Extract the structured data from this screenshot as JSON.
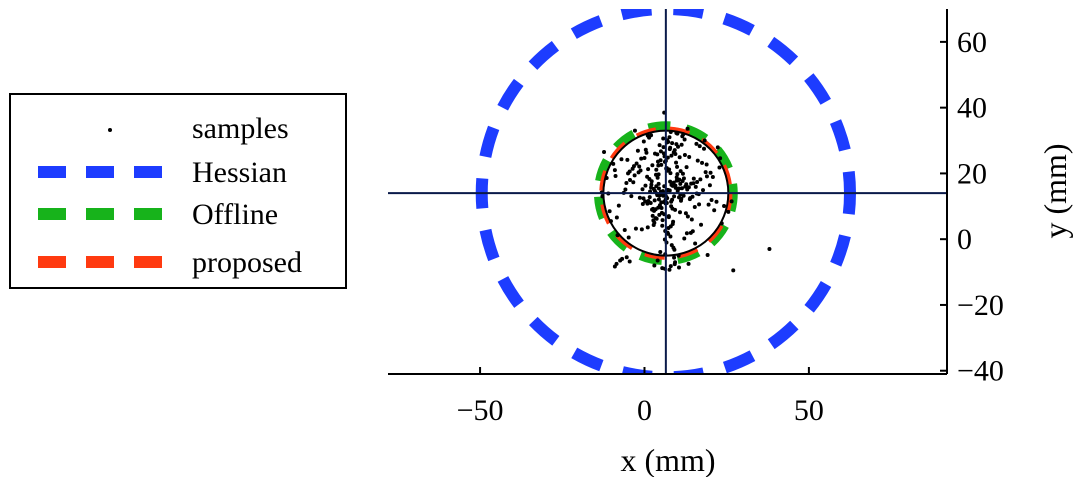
{
  "chart_data": {
    "type": "scatter",
    "title": "",
    "xlabel": "x (mm)",
    "ylabel": "y (mm)",
    "xlim": [
      -78,
      92
    ],
    "ylim": [
      -41,
      70
    ],
    "x_ticks": [
      -50,
      0,
      50
    ],
    "x_tick_labels": [
      "−50",
      "0",
      "50"
    ],
    "y_ticks": [
      -40,
      -20,
      0,
      20,
      40,
      60
    ],
    "y_tick_labels": [
      "−40",
      "−20",
      "0",
      "20",
      "40",
      "60"
    ],
    "y_axis_side": "right",
    "grid": false,
    "legend_position": "left",
    "crosshair": {
      "x": 6.5,
      "y": 14,
      "color": "#0a1a4a"
    },
    "reference_circle": {
      "cx": 6.5,
      "cy": 14,
      "r": 19,
      "color": "#000000"
    },
    "legend": [
      {
        "label": "samples",
        "style": "dot",
        "color": "#000000"
      },
      {
        "label": "Hessian",
        "style": "dashed",
        "color": "#1d3cff"
      },
      {
        "label": "Offline",
        "style": "dashed",
        "color": "#17b31b"
      },
      {
        "label": "proposed",
        "style": "dashed",
        "color": "#ff3a10"
      }
    ],
    "series": [
      {
        "name": "Hessian",
        "type": "circle",
        "cx": 6.5,
        "cy": 14,
        "r": 56,
        "color": "#1d3cff"
      },
      {
        "name": "Offline",
        "type": "circle",
        "cx": 6.5,
        "cy": 14,
        "r": 20.5,
        "color": "#17b31b"
      },
      {
        "name": "proposed",
        "type": "circle",
        "cx": 6.5,
        "cy": 14,
        "r": 19.5,
        "color": "#ff3a10"
      },
      {
        "name": "samples",
        "type": "scatter",
        "x": [
          6.5,
          8.2,
          5.1,
          9.8,
          3.4,
          7.9,
          10.5,
          4.2,
          6.0,
          2.8,
          11.7,
          5.5,
          8.9,
          7.1,
          3.9,
          9.3,
          6.8,
          4.7,
          12.4,
          1.5,
          8.0,
          5.9,
          10.1,
          3.1,
          7.4,
          9.6,
          2.2,
          6.3,
          11.0,
          4.4,
          7.7,
          5.2,
          13.5,
          0.8,
          8.6,
          6.1,
          9.0,
          3.6,
          10.8,
          5.8,
          14.2,
          -0.5,
          7.2,
          4.9,
          12.0,
          2.5,
          8.4,
          6.6,
          9.9,
          3.3,
          15.3,
          -1.8,
          7.9,
          5.0,
          11.4,
          1.9,
          6.9,
          8.7,
          4.1,
          10.3,
          16.5,
          -3.0,
          6.2,
          9.4,
          2.9,
          12.8,
          0.3,
          7.6,
          5.4,
          13.9,
          -2.4,
          8.1,
          4.6,
          10.6,
          3.7,
          17.8,
          -4.5,
          6.7,
          9.2,
          1.2,
          14.9,
          -1.0,
          7.3,
          5.7,
          11.9,
          2.6,
          18.9,
          -5.8,
          8.3,
          4.3,
          12.6,
          0.6,
          6.4,
          10.0,
          3.0,
          16.0,
          -3.6,
          7.0,
          9.7,
          1.7,
          19.5,
          -7.0,
          8.8,
          4.0,
          13.2,
          -0.2,
          6.0,
          11.2,
          2.4,
          17.2,
          -5.0,
          7.8,
          5.3,
          15.6,
          -2.9,
          9.1,
          3.8,
          12.3,
          0.9,
          20.8,
          -8.2,
          6.5,
          10.9,
          2.0,
          14.4,
          -1.4,
          7.5,
          4.8,
          18.1,
          -6.3,
          8.5,
          3.5,
          13.6,
          -0.8,
          11.6,
          1.4,
          21.9,
          -9.5,
          6.3,
          9.5,
          4.5,
          16.8,
          -4.0,
          7.1,
          12.9,
          0.0,
          19.9,
          -7.8,
          8.0,
          2.7,
          15.0,
          -2.0,
          10.4,
          5.6,
          22.8,
          -10.6,
          6.8,
          13.8,
          1.0,
          17.5,
          -5.5,
          9.0,
          3.2,
          20.4,
          -8.8,
          7.4,
          11.5,
          -0.6,
          14.7,
          -3.2,
          6.1,
          10.2,
          4.2,
          18.6,
          -6.8,
          8.2,
          2.1,
          23.5,
          -11.5,
          12.2,
          5.9,
          16.2,
          -4.8,
          9.8,
          0.4,
          21.2,
          -9.0,
          7.7,
          13.1,
          3.4,
          19.0,
          -7.4,
          10.7,
          1.6,
          15.8,
          -2.6,
          8.6,
          5.1,
          24.2,
          -12.3,
          7.0,
          14.1,
          -1.2,
          11.8,
          2.3,
          17.0,
          -5.2,
          9.3,
          4.6,
          22.3,
          -10.2,
          6.6,
          12.7,
          0.2,
          18.3,
          -6.0,
          10.0,
          3.9,
          25.5,
          -13.0,
          6.2,
          15.4,
          -3.4,
          11.3,
          -0.3,
          20.1,
          -8.4,
          8.9,
          4.4,
          13.4,
          -1.6,
          16.6,
          -4.4,
          9.7,
          2.8,
          23.0,
          -11.0,
          7.2,
          12.1,
          1.1,
          5.0,
          8.4,
          3.6,
          10.9,
          6.4,
          2.0,
          14.6,
          7.8,
          4.9,
          11.1,
          9.4,
          5.7,
          13.0,
          6.9,
          3.1,
          15.9,
          8.1,
          4.3,
          10.5,
          7.3,
          6.8,
          26.5,
          3.0,
          -12.8,
          19.2,
          -5.4,
          6.0,
          38.0,
          1.0,
          27.0,
          -8.5,
          -4.5,
          -9.0,
          10.5,
          6.2,
          8.0,
          9.2,
          5.4,
          7.6,
          4.0
        ],
        "y": [
          14.0,
          16.5,
          11.2,
          18.8,
          9.1,
          20.1,
          12.7,
          22.4,
          7.6,
          15.3,
          19.9,
          5.8,
          17.2,
          24.8,
          13.4,
          8.9,
          21.6,
          10.3,
          16.0,
          18.3,
          3.9,
          26.1,
          14.7,
          11.8,
          6.7,
          23.3,
          17.6,
          2.5,
          20.7,
          12.1,
          27.4,
          9.5,
          15.8,
          19.0,
          4.6,
          25.2,
          13.0,
          21.1,
          8.2,
          28.0,
          16.9,
          10.7,
          1.6,
          24.0,
          18.5,
          7.1,
          29.2,
          12.9,
          22.0,
          14.3,
          9.8,
          20.3,
          0.8,
          26.7,
          15.5,
          11.0,
          30.1,
          5.3,
          23.6,
          17.9,
          13.7,
          19.4,
          -0.1,
          25.9,
          8.6,
          21.9,
          16.3,
          31.0,
          4.1,
          12.5,
          23.0,
          10.0,
          28.6,
          18.1,
          6.2,
          14.9,
          20.6,
          -1.0,
          27.1,
          11.6,
          17.0,
          24.5,
          3.4,
          30.6,
          13.2,
          9.2,
          22.7,
          15.1,
          -1.8,
          19.7,
          7.9,
          26.3,
          12.0,
          32.1,
          5.0,
          17.4,
          21.4,
          2.0,
          28.9,
          14.5,
          10.5,
          24.3,
          -2.6,
          18.7,
          6.9,
          29.7,
          16.1,
          12.3,
          22.5,
          4.4,
          20.0,
          27.8,
          8.0,
          15.9,
          33.0,
          -3.2,
          13.8,
          25.6,
          10.8,
          18.9,
          1.2,
          23.8,
          16.8,
          31.6,
          6.0,
          12.6,
          21.2,
          -3.9,
          27.5,
          14.1,
          9.3,
          19.6,
          25.0,
          3.0,
          17.7,
          30.9,
          11.4,
          22.9,
          -4.6,
          15.6,
          7.4,
          28.3,
          13.1,
          20.8,
          1.8,
          24.7,
          16.4,
          10.2,
          32.6,
          5.7,
          18.4,
          26.9,
          -5.0,
          14.6,
          21.8,
          8.5,
          29.4,
          12.2,
          3.6,
          23.2,
          17.1,
          -5.6,
          26.0,
          11.9,
          19.2,
          7.0,
          31.3,
          15.2,
          2.4,
          22.2,
          13.5,
          28.1,
          9.6,
          20.4,
          -6.0,
          25.4,
          16.6,
          4.8,
          18.6,
          30.3,
          11.3,
          23.9,
          0.5,
          17.8,
          27.2,
          8.8,
          21.0,
          14.8,
          33.6,
          6.4,
          19.1,
          -6.5,
          24.9,
          12.8,
          29.0,
          3.2,
          16.2,
          22.6,
          10.1,
          26.5,
          15.0,
          1.9,
          20.9,
          31.9,
          9.0,
          18.2,
          24.1,
          -7.0,
          13.3,
          27.9,
          5.5,
          21.5,
          16.7,
          11.5,
          30.0,
          2.8,
          19.8,
          25.8,
          8.3,
          14.2,
          23.5,
          -1.3,
          17.3,
          28.7,
          12.4,
          20.2,
          6.6,
          26.4,
          15.4,
          -7.5,
          22.1,
          10.6,
          18.0,
          32.3,
          4.3,
          24.6,
          13.9,
          29.6,
          0.2,
          21.3,
          14.4,
          12.0,
          16.1,
          13.6,
          10.9,
          15.7,
          12.9,
          17.5,
          14.0,
          11.7,
          16.3,
          13.2,
          15.1,
          12.5,
          14.8,
          13.9,
          11.4,
          16.8,
          15.4,
          14.9,
          11.0,
          11.5,
          -8.0,
          13.0,
          -4.8,
          -5.5,
          38.5,
          -3.0,
          31.5,
          -9.5,
          -7.5,
          -6.8,
          -8.3,
          -8.6,
          -9.0,
          -8.2,
          -7.6,
          -8.8,
          -9.3,
          -6.5
        ]
      }
    ]
  }
}
